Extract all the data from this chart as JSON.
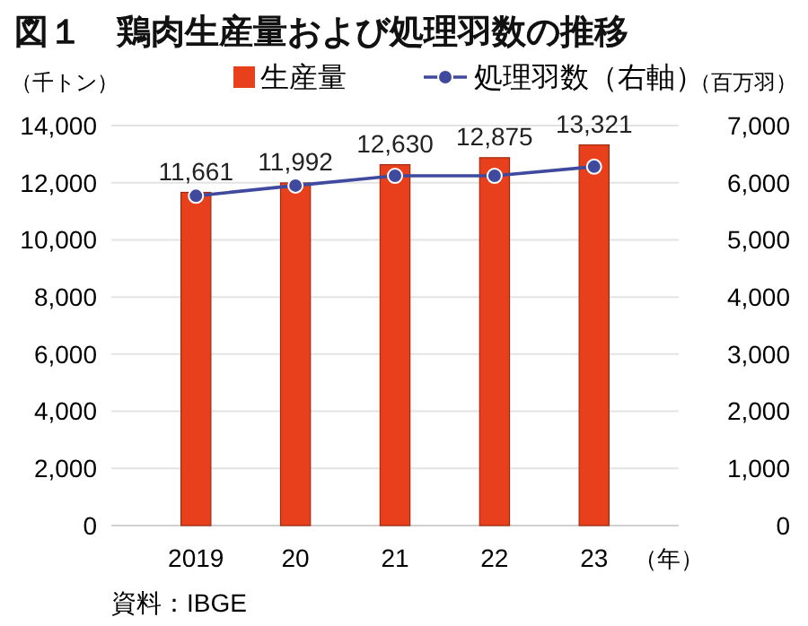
{
  "chart_data": {
    "type": "bar",
    "title": "図１　鶏肉生産量および処理羽数の推移",
    "ylabel": "（千トン）",
    "y2label": "（百万羽）",
    "xlabel": "（年）",
    "annotations": [
      "資料：IBGE"
    ],
    "categories": [
      "2019",
      "20",
      "21",
      "22",
      "23"
    ],
    "series": [
      {
        "name": "生産量",
        "color": "#e8401c",
        "values": [
          11661,
          11992,
          12630,
          12875,
          13321
        ],
        "value_labels": [
          "11,661",
          "11,992",
          "12,630",
          "12,875",
          "13,321"
        ]
      },
      {
        "name": "処理羽数（右軸）",
        "type": "line",
        "axis": "y2",
        "color": "#3f4a9e",
        "marker": "circle",
        "values": [
          5770,
          5950,
          6120,
          6120,
          6280
        ]
      }
    ],
    "ylim": [
      0,
      14000
    ],
    "yticks": [
      {
        "value": 0,
        "label": "0"
      },
      {
        "value": 2000,
        "label": "2,000"
      },
      {
        "value": 4000,
        "label": "4,000"
      },
      {
        "value": 6000,
        "label": "6,000"
      },
      {
        "value": 8000,
        "label": "8,000"
      },
      {
        "value": 10000,
        "label": "10,000"
      },
      {
        "value": 12000,
        "label": "12,000"
      },
      {
        "value": 14000,
        "label": "14,000"
      }
    ],
    "y2lim": [
      0,
      7000
    ],
    "y2ticks": [
      {
        "value": 0,
        "label": "0"
      },
      {
        "value": 1000,
        "label": "1,000"
      },
      {
        "value": 2000,
        "label": "2,000"
      },
      {
        "value": 3000,
        "label": "3,000"
      },
      {
        "value": 4000,
        "label": "4,000"
      },
      {
        "value": 5000,
        "label": "5,000"
      },
      {
        "value": 6000,
        "label": "6,000"
      },
      {
        "value": 7000,
        "label": "7,000"
      }
    ],
    "grid": "y",
    "legend": "top"
  }
}
